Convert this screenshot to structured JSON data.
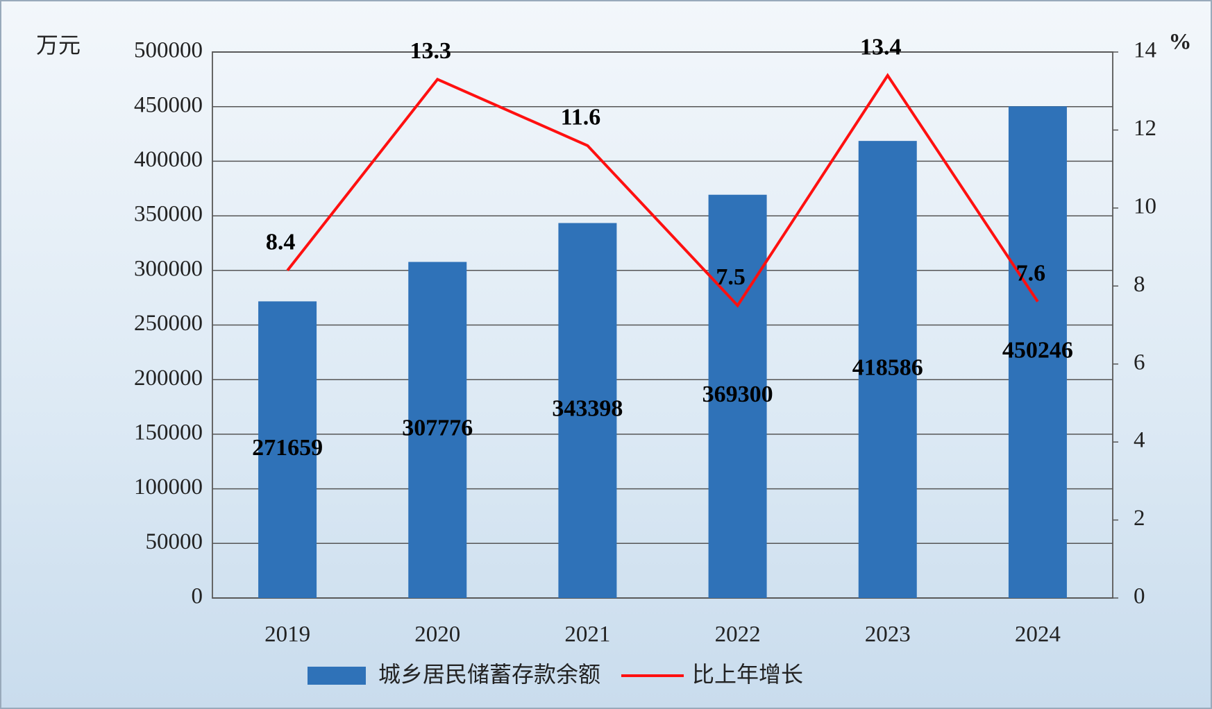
{
  "chart_data": {
    "type": "bar",
    "y_label": "万元",
    "y2_label": "%",
    "categories": [
      "2019",
      "2020",
      "2021",
      "2022",
      "2023",
      "2024"
    ],
    "series": [
      {
        "name": "城乡居民储蓄存款余额",
        "type": "bar",
        "color": "#2f72b8",
        "values": [
          271659,
          307776,
          343398,
          369300,
          418586,
          450246
        ]
      },
      {
        "name": "比上年增长",
        "type": "line",
        "axis": "y2",
        "color": "#ff1010",
        "values": [
          8.4,
          13.3,
          11.6,
          7.5,
          13.4,
          7.6
        ]
      }
    ],
    "ylim": [
      0,
      500000
    ],
    "yticks": [
      0,
      50000,
      100000,
      150000,
      200000,
      250000,
      300000,
      350000,
      400000,
      450000,
      500000
    ],
    "y2lim": [
      0,
      14
    ],
    "y2ticks": [
      0,
      2,
      4,
      6,
      8,
      10,
      12,
      14
    ],
    "grid": true,
    "legend": "bottom"
  }
}
